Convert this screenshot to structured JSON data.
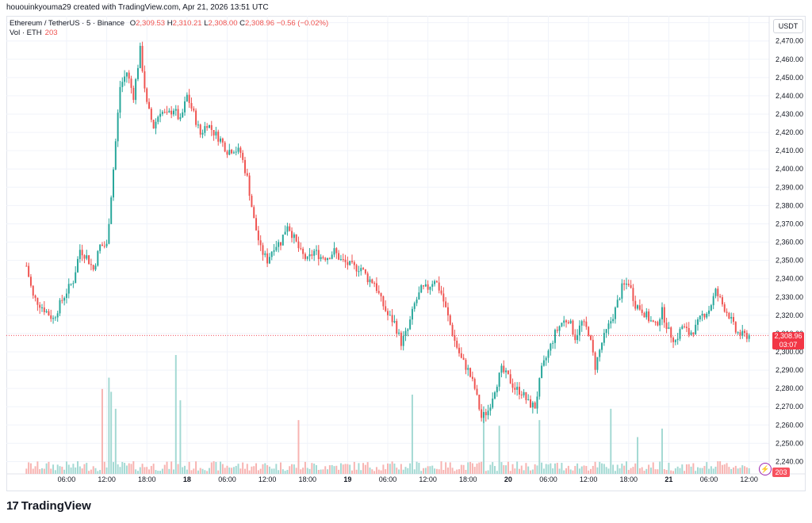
{
  "header": {
    "credit": "hououinkyouma29 created with TradingView.com, Apr 21, 2026 13:51 UTC"
  },
  "legend": {
    "symbol": "Ethereum / TetherUS · 5 · Binance",
    "open_label": "O",
    "open": "2,309.53",
    "high_label": "H",
    "high": "2,310.21",
    "low_label": "L",
    "low": "2,308.00",
    "close_label": "C",
    "close": "2,308.96",
    "change": "−0.56 (−0.02%)",
    "vol_label": "Vol · ETH",
    "vol_value": "203"
  },
  "currency": "USDT",
  "last_price": {
    "price": "2,308.96",
    "countdown": "03:07"
  },
  "volume_badge": "203",
  "brand": "TradingView",
  "colors": {
    "up": "#26a69a",
    "down": "#ef5350",
    "up_vol": "#a3d9d3",
    "down_vol": "#f7b3b1",
    "grid": "#f0f3fa"
  },
  "chart_data": {
    "type": "candlestick",
    "title": "Ethereum / TetherUS · 5 · Binance",
    "ylim": [
      2235,
      2482
    ],
    "y_ticks": [
      2240,
      2250,
      2260,
      2270,
      2280,
      2290,
      2300,
      2310,
      2320,
      2330,
      2340,
      2350,
      2360,
      2370,
      2380,
      2390,
      2400,
      2410,
      2420,
      2430,
      2440,
      2450,
      2460,
      2470,
      2480
    ],
    "y_tick_labels": [
      "2,240.00",
      "2,250.00",
      "2,260.00",
      "2,270.00",
      "2,280.00",
      "2,290.00",
      "2,300.00",
      "2,310.00",
      "2,320.00",
      "2,330.00",
      "2,340.00",
      "2,350.00",
      "2,360.00",
      "2,370.00",
      "2,380.00",
      "2,390.00",
      "2,400.00",
      "2,410.00",
      "2,420.00",
      "2,430.00",
      "2,440.00",
      "2,450.00",
      "2,460.00",
      "2,470.00",
      "2,480.00"
    ],
    "x_hours_range": [
      -3,
      84.6
    ],
    "x_ticks": [
      {
        "h": 6,
        "label": "06:00"
      },
      {
        "h": 12,
        "label": "12:00"
      },
      {
        "h": 18,
        "label": "18:00"
      },
      {
        "h": 24,
        "label": "18"
      },
      {
        "h": 30,
        "label": "06:00"
      },
      {
        "h": 36,
        "label": "12:00"
      },
      {
        "h": 42,
        "label": "18:00"
      },
      {
        "h": 48,
        "label": "19"
      },
      {
        "h": 54,
        "label": "06:00"
      },
      {
        "h": 60,
        "label": "12:00"
      },
      {
        "h": 66,
        "label": "18:00"
      },
      {
        "h": 72,
        "label": "20"
      },
      {
        "h": 78,
        "label": "06:00"
      },
      {
        "h": 84,
        "label": "12:00"
      }
    ],
    "x_ticks_extra": [
      {
        "h": 90,
        "label": "18:00"
      },
      {
        "h": 96,
        "label": "21"
      },
      {
        "h": 102,
        "label": "06:00"
      },
      {
        "h": 108,
        "label": "12:00"
      }
    ],
    "price_path": [
      [
        0,
        2347
      ],
      [
        1,
        2330
      ],
      [
        2,
        2326
      ],
      [
        3,
        2322
      ],
      [
        4,
        2318
      ],
      [
        5,
        2326
      ],
      [
        6,
        2333
      ],
      [
        7,
        2339
      ],
      [
        8,
        2356
      ],
      [
        9,
        2352
      ],
      [
        10,
        2345
      ],
      [
        11,
        2358
      ],
      [
        12,
        2358
      ],
      [
        13,
        2400
      ],
      [
        14,
        2445
      ],
      [
        15,
        2453
      ],
      [
        16,
        2440
      ],
      [
        17,
        2465
      ],
      [
        18,
        2435
      ],
      [
        19,
        2423
      ],
      [
        20,
        2432
      ],
      [
        21,
        2429
      ],
      [
        22,
        2433
      ],
      [
        23,
        2426
      ],
      [
        24,
        2440
      ],
      [
        25,
        2430
      ],
      [
        26,
        2419
      ],
      [
        27,
        2425
      ],
      [
        28,
        2420
      ],
      [
        29,
        2416
      ],
      [
        30,
        2410
      ],
      [
        31,
        2411
      ],
      [
        32,
        2409
      ],
      [
        33,
        2395
      ],
      [
        34,
        2372
      ],
      [
        35,
        2356
      ],
      [
        36,
        2350
      ],
      [
        37,
        2358
      ],
      [
        38,
        2360
      ],
      [
        39,
        2370
      ],
      [
        40,
        2362
      ],
      [
        41,
        2354
      ],
      [
        42,
        2350
      ],
      [
        43,
        2355
      ],
      [
        44,
        2352
      ],
      [
        45,
        2352
      ],
      [
        46,
        2355
      ],
      [
        47,
        2350
      ],
      [
        48,
        2348
      ],
      [
        49,
        2346
      ],
      [
        50,
        2346
      ],
      [
        51,
        2340
      ],
      [
        52,
        2338
      ],
      [
        53,
        2328
      ],
      [
        54,
        2320
      ],
      [
        55,
        2316
      ],
      [
        56,
        2305
      ],
      [
        57,
        2312
      ],
      [
        58,
        2326
      ],
      [
        59,
        2334
      ],
      [
        60,
        2335
      ],
      [
        61,
        2340
      ],
      [
        62,
        2332
      ],
      [
        63,
        2319
      ],
      [
        64,
        2306
      ],
      [
        65,
        2296
      ],
      [
        66,
        2290
      ],
      [
        67,
        2280
      ],
      [
        68,
        2264
      ],
      [
        69,
        2268
      ],
      [
        70,
        2280
      ],
      [
        71,
        2290
      ],
      [
        72,
        2286
      ],
      [
        73,
        2280
      ],
      [
        74,
        2278
      ],
      [
        75,
        2272
      ],
      [
        76,
        2270
      ],
      [
        77,
        2290
      ],
      [
        78,
        2300
      ],
      [
        79,
        2310
      ],
      [
        80,
        2316
      ],
      [
        81,
        2318
      ],
      [
        82,
        2308
      ],
      [
        83,
        2316
      ],
      [
        84,
        2311
      ],
      [
        85,
        2292
      ],
      [
        86,
        2305
      ],
      [
        87,
        2314
      ],
      [
        88,
        2323
      ],
      [
        89,
        2335
      ],
      [
        90,
        2338
      ],
      [
        91,
        2326
      ],
      [
        92,
        2323
      ],
      [
        93,
        2318
      ],
      [
        94,
        2314
      ],
      [
        95,
        2322
      ],
      [
        96,
        2311
      ],
      [
        97,
        2306
      ],
      [
        98,
        2314
      ],
      [
        99,
        2310
      ],
      [
        100,
        2313
      ],
      [
        101,
        2320
      ],
      [
        102,
        2323
      ],
      [
        103,
        2333
      ],
      [
        104,
        2326
      ],
      [
        105,
        2320
      ],
      [
        106,
        2311
      ],
      [
        107,
        2309
      ],
      [
        108,
        2309
      ]
    ],
    "volume_spikes": [
      {
        "h": 11.5,
        "v": 300
      },
      {
        "h": 12.2,
        "v": 340
      },
      {
        "h": 12.8,
        "v": 290
      },
      {
        "h": 13.4,
        "v": 230
      },
      {
        "h": 22.4,
        "v": 420
      },
      {
        "h": 22.9,
        "v": 260
      },
      {
        "h": 40.8,
        "v": 190
      },
      {
        "h": 57.8,
        "v": 280
      },
      {
        "h": 68.2,
        "v": 210
      },
      {
        "h": 70.6,
        "v": 170
      },
      {
        "h": 76.6,
        "v": 190
      },
      {
        "h": 87.4,
        "v": 230
      },
      {
        "h": 91.2,
        "v": 130
      },
      {
        "h": 95.0,
        "v": 160
      }
    ]
  }
}
